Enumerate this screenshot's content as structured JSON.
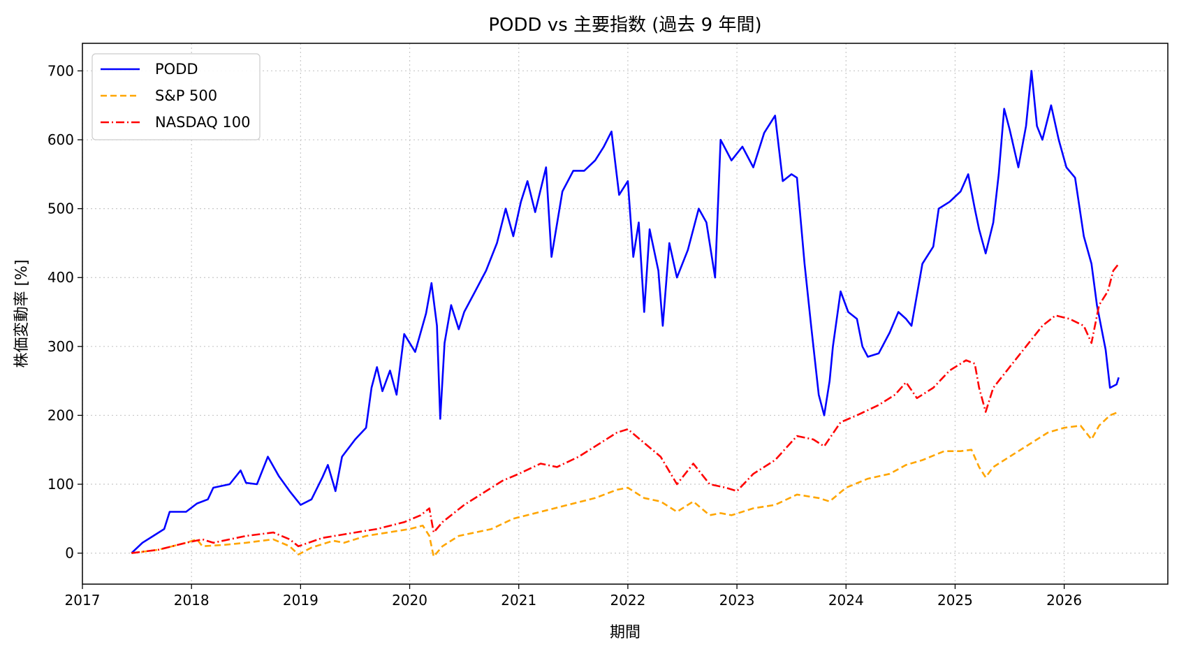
{
  "chart_data": {
    "type": "line",
    "title": "PODD vs 主要指数 (過去 9 年間)",
    "xlabel": "期間",
    "ylabel": "株価変動率 [%]",
    "xlim": [
      2017.0,
      2026.95
    ],
    "ylim": [
      -45,
      740
    ],
    "x_ticks": [
      2017,
      2018,
      2019,
      2020,
      2021,
      2022,
      2023,
      2024,
      2025,
      2026
    ],
    "x_tick_labels": [
      "2017",
      "2018",
      "2019",
      "2020",
      "2021",
      "2022",
      "2023",
      "2024",
      "2025",
      "2026"
    ],
    "y_ticks": [
      0,
      100,
      200,
      300,
      400,
      500,
      600,
      700
    ],
    "y_tick_labels": [
      "0",
      "100",
      "200",
      "300",
      "400",
      "500",
      "600",
      "700"
    ],
    "grid": true,
    "legend_position": "top-left",
    "series": [
      {
        "name": "PODD",
        "color": "#0000ff",
        "style": "solid",
        "points": [
          [
            2017.45,
            0
          ],
          [
            2017.55,
            15
          ],
          [
            2017.65,
            25
          ],
          [
            2017.75,
            35
          ],
          [
            2017.8,
            60
          ],
          [
            2017.95,
            60
          ],
          [
            2018.05,
            72
          ],
          [
            2018.15,
            78
          ],
          [
            2018.2,
            95
          ],
          [
            2018.35,
            100
          ],
          [
            2018.45,
            120
          ],
          [
            2018.5,
            102
          ],
          [
            2018.6,
            100
          ],
          [
            2018.7,
            140
          ],
          [
            2018.8,
            112
          ],
          [
            2018.9,
            90
          ],
          [
            2019.0,
            70
          ],
          [
            2019.1,
            78
          ],
          [
            2019.2,
            110
          ],
          [
            2019.25,
            128
          ],
          [
            2019.32,
            90
          ],
          [
            2019.38,
            140
          ],
          [
            2019.5,
            165
          ],
          [
            2019.6,
            182
          ],
          [
            2019.65,
            240
          ],
          [
            2019.7,
            270
          ],
          [
            2019.75,
            235
          ],
          [
            2019.82,
            265
          ],
          [
            2019.88,
            230
          ],
          [
            2019.95,
            318
          ],
          [
            2020.05,
            292
          ],
          [
            2020.1,
            320
          ],
          [
            2020.15,
            348
          ],
          [
            2020.2,
            392
          ],
          [
            2020.25,
            330
          ],
          [
            2020.28,
            195
          ],
          [
            2020.32,
            305
          ],
          [
            2020.38,
            360
          ],
          [
            2020.45,
            325
          ],
          [
            2020.5,
            350
          ],
          [
            2020.6,
            380
          ],
          [
            2020.7,
            410
          ],
          [
            2020.8,
            450
          ],
          [
            2020.88,
            500
          ],
          [
            2020.95,
            460
          ],
          [
            2021.02,
            510
          ],
          [
            2021.08,
            540
          ],
          [
            2021.15,
            495
          ],
          [
            2021.25,
            560
          ],
          [
            2021.3,
            430
          ],
          [
            2021.4,
            525
          ],
          [
            2021.5,
            555
          ],
          [
            2021.6,
            555
          ],
          [
            2021.7,
            570
          ],
          [
            2021.78,
            590
          ],
          [
            2021.85,
            612
          ],
          [
            2021.92,
            520
          ],
          [
            2022.0,
            540
          ],
          [
            2022.05,
            430
          ],
          [
            2022.1,
            480
          ],
          [
            2022.15,
            350
          ],
          [
            2022.2,
            470
          ],
          [
            2022.28,
            410
          ],
          [
            2022.32,
            330
          ],
          [
            2022.38,
            450
          ],
          [
            2022.45,
            400
          ],
          [
            2022.55,
            440
          ],
          [
            2022.65,
            500
          ],
          [
            2022.72,
            480
          ],
          [
            2022.8,
            400
          ],
          [
            2022.85,
            600
          ],
          [
            2022.95,
            570
          ],
          [
            2023.05,
            590
          ],
          [
            2023.15,
            560
          ],
          [
            2023.25,
            610
          ],
          [
            2023.35,
            635
          ],
          [
            2023.42,
            540
          ],
          [
            2023.5,
            550
          ],
          [
            2023.55,
            545
          ],
          [
            2023.62,
            420
          ],
          [
            2023.68,
            330
          ],
          [
            2023.75,
            230
          ],
          [
            2023.8,
            200
          ],
          [
            2023.85,
            250
          ],
          [
            2023.88,
            300
          ],
          [
            2023.95,
            380
          ],
          [
            2024.02,
            350
          ],
          [
            2024.1,
            340
          ],
          [
            2024.15,
            300
          ],
          [
            2024.2,
            285
          ],
          [
            2024.3,
            290
          ],
          [
            2024.4,
            320
          ],
          [
            2024.48,
            350
          ],
          [
            2024.55,
            340
          ],
          [
            2024.6,
            330
          ],
          [
            2024.7,
            420
          ],
          [
            2024.8,
            445
          ],
          [
            2024.85,
            500
          ],
          [
            2024.95,
            510
          ],
          [
            2025.05,
            525
          ],
          [
            2025.12,
            550
          ],
          [
            2025.18,
            500
          ],
          [
            2025.22,
            470
          ],
          [
            2025.28,
            435
          ],
          [
            2025.35,
            480
          ],
          [
            2025.4,
            550
          ],
          [
            2025.45,
            645
          ],
          [
            2025.5,
            615
          ],
          [
            2025.58,
            560
          ],
          [
            2025.65,
            620
          ],
          [
            2025.7,
            700
          ],
          [
            2025.75,
            620
          ],
          [
            2025.8,
            600
          ],
          [
            2025.88,
            650
          ],
          [
            2025.95,
            600
          ],
          [
            2026.02,
            560
          ],
          [
            2026.1,
            545
          ],
          [
            2026.18,
            460
          ],
          [
            2026.25,
            420
          ],
          [
            2026.3,
            360
          ],
          [
            2026.38,
            295
          ],
          [
            2026.42,
            240
          ],
          [
            2026.48,
            245
          ],
          [
            2026.5,
            255
          ]
        ]
      },
      {
        "name": "S&P 500",
        "color": "#ffa500",
        "style": "dashed",
        "points": [
          [
            2017.45,
            0
          ],
          [
            2017.7,
            5
          ],
          [
            2017.95,
            15
          ],
          [
            2018.05,
            20
          ],
          [
            2018.1,
            10
          ],
          [
            2018.3,
            12
          ],
          [
            2018.5,
            15
          ],
          [
            2018.75,
            20
          ],
          [
            2018.9,
            10
          ],
          [
            2018.98,
            -2
          ],
          [
            2019.1,
            8
          ],
          [
            2019.3,
            18
          ],
          [
            2019.4,
            15
          ],
          [
            2019.6,
            25
          ],
          [
            2019.8,
            30
          ],
          [
            2020.0,
            35
          ],
          [
            2020.12,
            40
          ],
          [
            2020.18,
            25
          ],
          [
            2020.22,
            -5
          ],
          [
            2020.3,
            10
          ],
          [
            2020.45,
            25
          ],
          [
            2020.6,
            30
          ],
          [
            2020.75,
            35
          ],
          [
            2020.95,
            50
          ],
          [
            2021.2,
            60
          ],
          [
            2021.45,
            70
          ],
          [
            2021.7,
            80
          ],
          [
            2021.9,
            92
          ],
          [
            2022.0,
            95
          ],
          [
            2022.15,
            80
          ],
          [
            2022.3,
            75
          ],
          [
            2022.45,
            60
          ],
          [
            2022.6,
            75
          ],
          [
            2022.75,
            55
          ],
          [
            2022.85,
            58
          ],
          [
            2022.95,
            55
          ],
          [
            2023.15,
            65
          ],
          [
            2023.35,
            70
          ],
          [
            2023.55,
            85
          ],
          [
            2023.75,
            80
          ],
          [
            2023.85,
            75
          ],
          [
            2024.0,
            95
          ],
          [
            2024.2,
            108
          ],
          [
            2024.4,
            115
          ],
          [
            2024.55,
            128
          ],
          [
            2024.7,
            135
          ],
          [
            2024.9,
            148
          ],
          [
            2025.05,
            148
          ],
          [
            2025.15,
            150
          ],
          [
            2025.22,
            125
          ],
          [
            2025.28,
            110
          ],
          [
            2025.35,
            125
          ],
          [
            2025.5,
            140
          ],
          [
            2025.7,
            160
          ],
          [
            2025.85,
            175
          ],
          [
            2026.0,
            182
          ],
          [
            2026.15,
            185
          ],
          [
            2026.25,
            165
          ],
          [
            2026.32,
            185
          ],
          [
            2026.42,
            200
          ],
          [
            2026.5,
            205
          ]
        ]
      },
      {
        "name": "NASDAQ 100",
        "color": "#ff0000",
        "style": "dashdot",
        "points": [
          [
            2017.45,
            0
          ],
          [
            2017.7,
            5
          ],
          [
            2017.95,
            15
          ],
          [
            2018.1,
            20
          ],
          [
            2018.2,
            15
          ],
          [
            2018.5,
            25
          ],
          [
            2018.75,
            30
          ],
          [
            2018.9,
            20
          ],
          [
            2018.98,
            10
          ],
          [
            2019.2,
            22
          ],
          [
            2019.5,
            30
          ],
          [
            2019.7,
            35
          ],
          [
            2019.95,
            45
          ],
          [
            2020.1,
            55
          ],
          [
            2020.18,
            65
          ],
          [
            2020.22,
            30
          ],
          [
            2020.3,
            45
          ],
          [
            2020.5,
            70
          ],
          [
            2020.7,
            90
          ],
          [
            2020.85,
            105
          ],
          [
            2021.0,
            115
          ],
          [
            2021.2,
            130
          ],
          [
            2021.35,
            125
          ],
          [
            2021.55,
            140
          ],
          [
            2021.75,
            160
          ],
          [
            2021.9,
            175
          ],
          [
            2022.0,
            180
          ],
          [
            2022.15,
            160
          ],
          [
            2022.3,
            140
          ],
          [
            2022.45,
            100
          ],
          [
            2022.6,
            130
          ],
          [
            2022.75,
            100
          ],
          [
            2022.9,
            95
          ],
          [
            2023.0,
            90
          ],
          [
            2023.15,
            115
          ],
          [
            2023.35,
            135
          ],
          [
            2023.55,
            170
          ],
          [
            2023.7,
            165
          ],
          [
            2023.8,
            155
          ],
          [
            2023.95,
            190
          ],
          [
            2024.1,
            200
          ],
          [
            2024.3,
            215
          ],
          [
            2024.45,
            230
          ],
          [
            2024.55,
            248
          ],
          [
            2024.65,
            225
          ],
          [
            2024.8,
            240
          ],
          [
            2024.95,
            265
          ],
          [
            2025.1,
            280
          ],
          [
            2025.18,
            275
          ],
          [
            2025.22,
            240
          ],
          [
            2025.28,
            205
          ],
          [
            2025.35,
            240
          ],
          [
            2025.5,
            270
          ],
          [
            2025.65,
            300
          ],
          [
            2025.8,
            330
          ],
          [
            2025.92,
            345
          ],
          [
            2026.05,
            340
          ],
          [
            2026.18,
            330
          ],
          [
            2026.25,
            305
          ],
          [
            2026.32,
            360
          ],
          [
            2026.4,
            380
          ],
          [
            2026.45,
            410
          ],
          [
            2026.5,
            420
          ]
        ]
      }
    ]
  }
}
